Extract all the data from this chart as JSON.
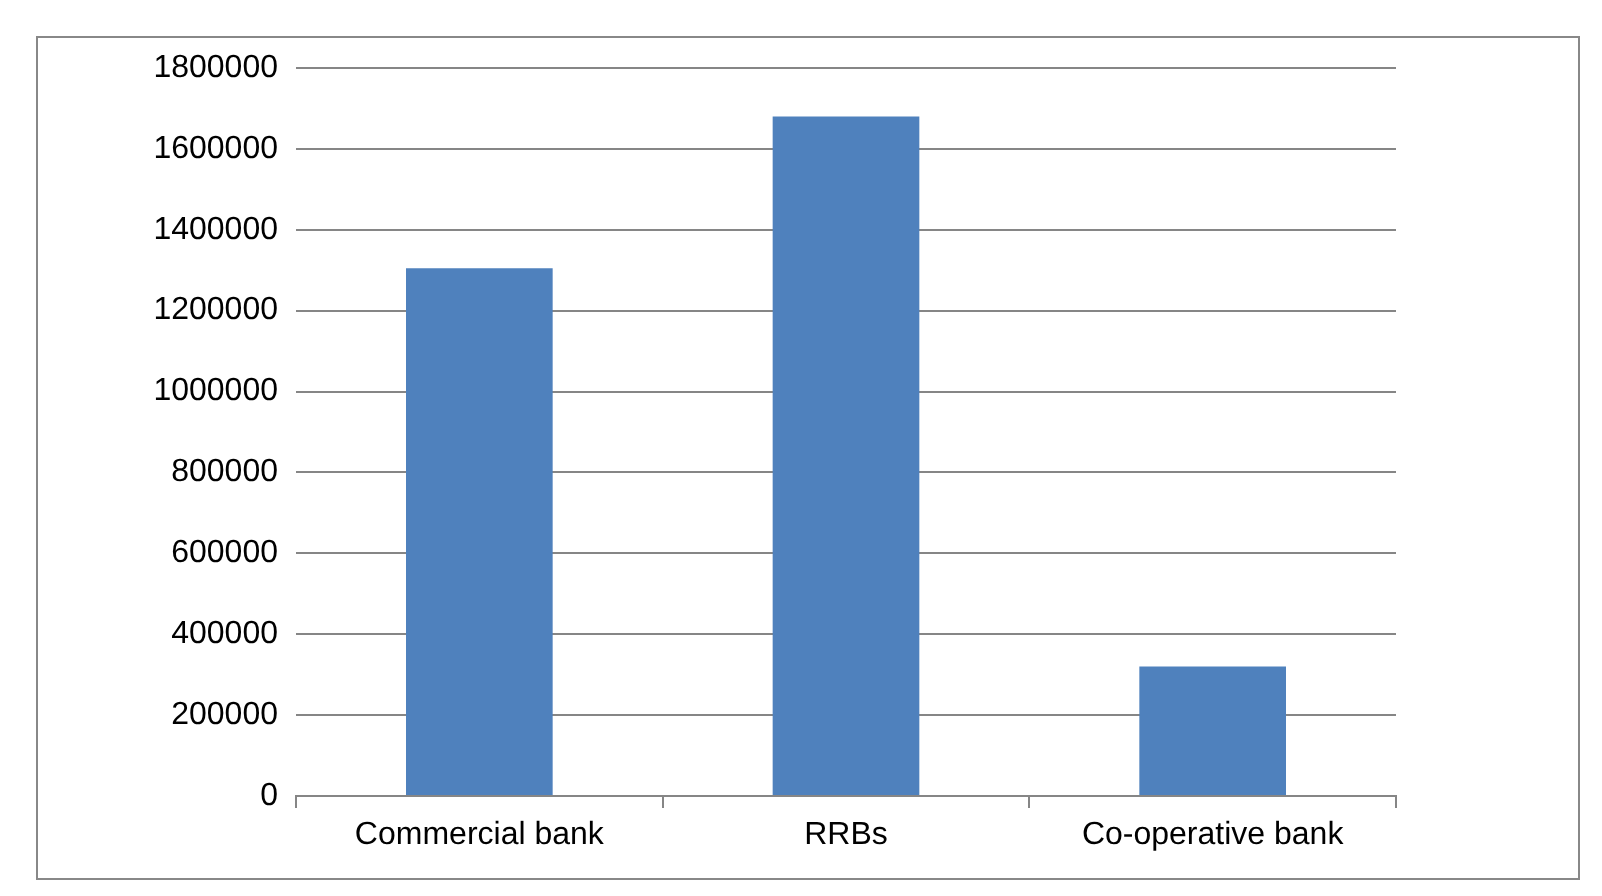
{
  "chart_data": {
    "type": "bar",
    "categories": [
      "Commercial bank",
      "RRBs",
      "Co-operative bank"
    ],
    "values": [
      1305000,
      1680000,
      320000
    ],
    "color": "#4f81bd",
    "ylim": [
      0,
      1800000
    ],
    "yticks": [
      0,
      200000,
      400000,
      600000,
      800000,
      1000000,
      1200000,
      1400000,
      1600000,
      1800000
    ],
    "grid": "y",
    "legend": false
  }
}
